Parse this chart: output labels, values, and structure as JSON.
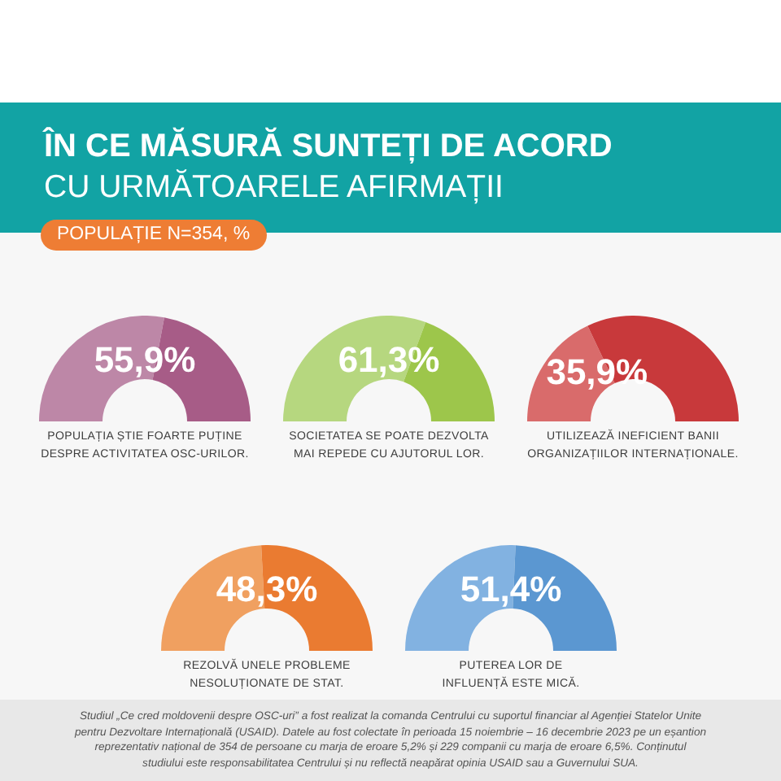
{
  "chart_data": [
    {
      "type": "donut",
      "title": "ÎN CE MĂSURĂ SUNTEȚI DE ACORD",
      "subtitle": "CU URMĂTOARELE AFIRMAȚII",
      "annotations": [
        "POPULAȚIE N=354, %",
        "Studiul „Ce cred moldovenii despre OSC-uri” a fost realizat la comanda Centrului cu suportul financiar al Agenției Statelor Unite pentru Dezvoltare Internațională (USAID). Datele au fost colectate în perioada 15 noiembrie – 16 decembrie 2023 pe un eșantion reprezentativ național de 354 de persoane cu marja de eroare 5,2% și 229 companii cu marja de eroare 6,5%. Conținutul studiului este responsabilitatea Centrului și nu reflectă neapărat opinia USAID sau a Guvernului SUA."
      ],
      "xlabel": "POPULAȚIA ȘTIE FOARTE PUȚINE\nDESPRE ACTIVITATEA OSC-URILOR.",
      "categories": [
        null,
        null
      ],
      "values": [
        55.9,
        44.1
      ],
      "colors": [
        "#bd87a7",
        "#a75c87"
      ],
      "value_labels": [
        "55,9%",
        null
      ]
    },
    {
      "type": "donut",
      "xlabel": "SOCIETATEA SE POATE DEZVOLTA\nMAI REPEDE CU AJUTORUL LOR.",
      "categories": [
        null,
        null
      ],
      "values": [
        61.3,
        38.7
      ],
      "colors": [
        "#b6d77f",
        "#9dc64b"
      ],
      "value_labels": [
        "61,3%",
        null
      ]
    },
    {
      "type": "donut",
      "xlabel": "UTILIZEAZĂ INEFICIENT BANII\nORGANIZAȚIILOR INTERNAȚIONALE.",
      "categories": [
        null,
        null
      ],
      "values": [
        35.9,
        64.1
      ],
      "colors": [
        "#d96b6b",
        "#c8393b"
      ],
      "value_labels": [
        "35,9%",
        null
      ]
    },
    {
      "type": "donut",
      "xlabel": "REZOLVĂ UNELE PROBLEME\nNESOLUȚIONATE DE STAT.",
      "categories": [
        null,
        null
      ],
      "values": [
        48.3,
        51.7
      ],
      "colors": [
        "#f0a060",
        "#ea7b31"
      ],
      "value_labels": [
        "48,3%",
        null
      ]
    },
    {
      "type": "donut",
      "xlabel": "PUTEREA LOR DE\nINFLUENȚĂ ESTE MICĂ.",
      "categories": [
        null,
        null
      ],
      "values": [
        51.4,
        48.6
      ],
      "colors": [
        "#82b2e1",
        "#5b97d1"
      ],
      "value_labels": [
        "51,4%",
        null
      ]
    }
  ]
}
